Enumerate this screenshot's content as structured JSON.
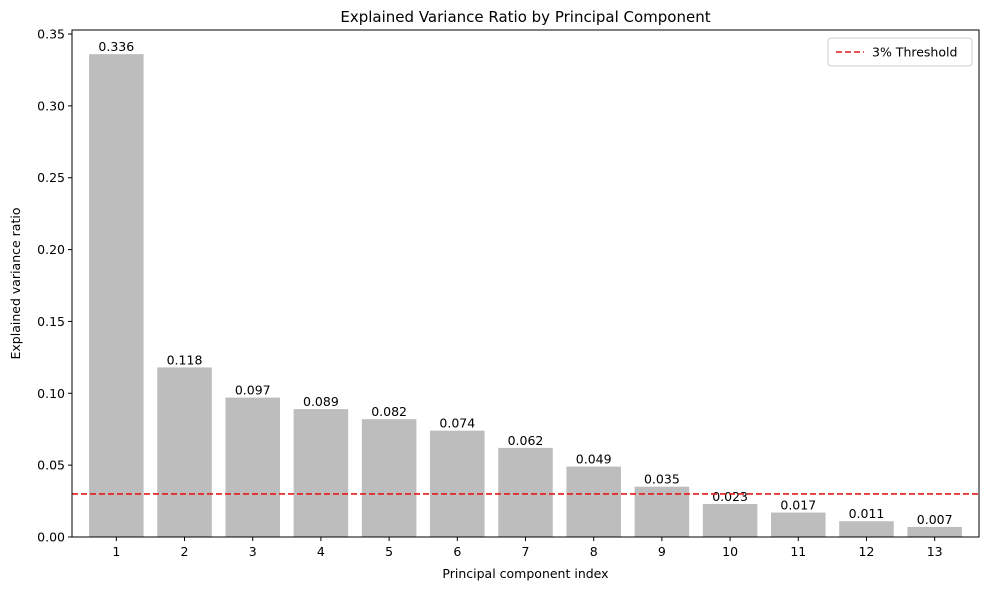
{
  "chart_data": {
    "type": "bar",
    "title": "Explained Variance Ratio by Principal Component",
    "xlabel": "Principal component index",
    "ylabel": "Explained variance ratio",
    "categories": [
      "1",
      "2",
      "3",
      "4",
      "5",
      "6",
      "7",
      "8",
      "9",
      "10",
      "11",
      "12",
      "13"
    ],
    "values": [
      0.336,
      0.118,
      0.097,
      0.089,
      0.082,
      0.074,
      0.062,
      0.049,
      0.035,
      0.023,
      0.017,
      0.011,
      0.007
    ],
    "data_labels": [
      "0.336",
      "0.118",
      "0.097",
      "0.089",
      "0.082",
      "0.074",
      "0.062",
      "0.049",
      "0.035",
      "0.023",
      "0.017",
      "0.011",
      "0.007"
    ],
    "ylim": [
      0,
      0.3528
    ],
    "yticks": [
      0.0,
      0.05,
      0.1,
      0.15,
      0.2,
      0.25,
      0.3,
      0.35
    ],
    "ytick_labels": [
      "0.00",
      "0.05",
      "0.10",
      "0.15",
      "0.20",
      "0.25",
      "0.30",
      "0.35"
    ],
    "bar_color": "#bdbdbd",
    "grid": false,
    "threshold": {
      "value": 0.03,
      "label": "3% Threshold",
      "color": "#e31a1c",
      "style": "dashed"
    },
    "legend": {
      "position": "top-right",
      "entries": [
        "3% Threshold"
      ]
    }
  }
}
